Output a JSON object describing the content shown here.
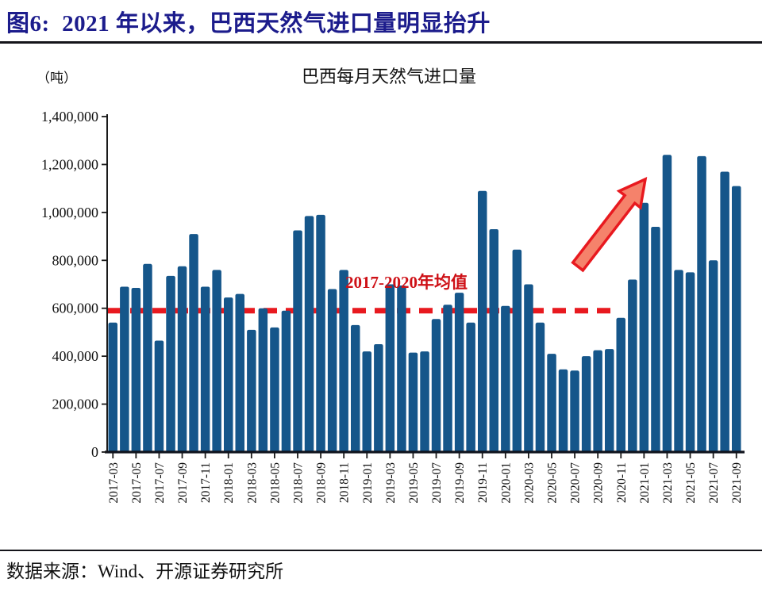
{
  "figure": {
    "title": "图6:  2021 年以来，巴西天然气进口量明显抬升",
    "source": "数据来源：Wind、开源证券研究所"
  },
  "chart_data": {
    "type": "bar",
    "title": "巴西每月天然气进口量",
    "unit_label": "（吨）",
    "xlabel": "",
    "ylabel": "",
    "ylim": [
      0,
      1400000
    ],
    "ytick_step": 200000,
    "ytick_labels": [
      "0",
      "200,000",
      "400,000",
      "600,000",
      "800,000",
      "1,000,000",
      "1,200,000",
      "1,400,000"
    ],
    "xtick_every": 2,
    "grid": "off",
    "legend": "none",
    "categories": [
      "2017-03",
      "2017-04",
      "2017-05",
      "2017-06",
      "2017-07",
      "2017-08",
      "2017-09",
      "2017-10",
      "2017-11",
      "2017-12",
      "2018-01",
      "2018-02",
      "2018-03",
      "2018-04",
      "2018-05",
      "2018-06",
      "2018-07",
      "2018-08",
      "2018-09",
      "2018-10",
      "2018-11",
      "2018-12",
      "2019-01",
      "2019-02",
      "2019-03",
      "2019-04",
      "2019-05",
      "2019-06",
      "2019-07",
      "2019-08",
      "2019-09",
      "2019-10",
      "2019-11",
      "2019-12",
      "2020-01",
      "2020-02",
      "2020-03",
      "2020-04",
      "2020-05",
      "2020-06",
      "2020-07",
      "2020-08",
      "2020-09",
      "2020-10",
      "2020-11",
      "2020-12",
      "2021-01",
      "2021-02",
      "2021-03",
      "2021-04",
      "2021-05",
      "2021-06",
      "2021-07",
      "2021-08",
      "2021-09"
    ],
    "values": [
      540000,
      690000,
      685000,
      785000,
      465000,
      735000,
      775000,
      910000,
      690000,
      760000,
      645000,
      660000,
      510000,
      600000,
      520000,
      590000,
      925000,
      985000,
      990000,
      680000,
      760000,
      530000,
      420000,
      450000,
      700000,
      695000,
      415000,
      420000,
      555000,
      615000,
      665000,
      540000,
      1090000,
      930000,
      610000,
      845000,
      700000,
      540000,
      410000,
      345000,
      340000,
      400000,
      425000,
      430000,
      560000,
      720000,
      1040000,
      940000,
      1240000,
      760000,
      750000,
      1235000,
      800000,
      1170000,
      1110000
    ],
    "average_line": {
      "value": 590000,
      "label": "2017-2020年均值"
    },
    "trend_arrow": "red arrow pointing up-right toward 2021 peak bars",
    "colors": {
      "bar": "#15568A",
      "red": "#E8191F",
      "annotation_red": "#CE1016",
      "arrow_fill": "#F5826B",
      "title_navy": "#1C1C8C",
      "axis": "#1A1A1A"
    }
  }
}
